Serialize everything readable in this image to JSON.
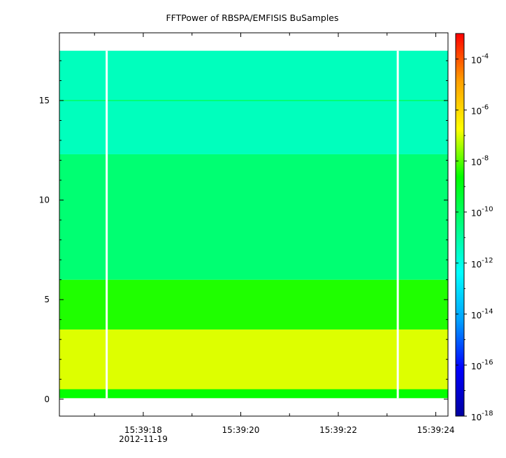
{
  "chart_data": {
    "type": "heatmap",
    "title": "FFTPower of RBSPA/EMFISIS  BuSamples",
    "xlabel": "",
    "ylabel": "",
    "x_ticks": [
      {
        "t": 18,
        "label": "15:39:18",
        "sublabel": "2012-11-19"
      },
      {
        "t": 20,
        "label": "15:39:20",
        "sublabel": ""
      },
      {
        "t": 22,
        "label": "15:39:22",
        "sublabel": ""
      },
      {
        "t": 24,
        "label": "15:39:24",
        "sublabel": ""
      }
    ],
    "x_minor_ticks": [
      17,
      19,
      21,
      23
    ],
    "xlim": [
      16.28,
      24.25
    ],
    "y_ticks": [
      {
        "v": 0,
        "label": "0"
      },
      {
        "v": 5,
        "label": "5"
      },
      {
        "v": 10,
        "label": "10"
      },
      {
        "v": 15,
        "label": "15"
      }
    ],
    "ylim": [
      -0.85,
      18.4
    ],
    "data_extent": {
      "x": [
        16.28,
        24.25
      ],
      "y": [
        0.05,
        17.5
      ]
    },
    "gaps_x": [
      17.25,
      23.22
    ],
    "bands": [
      {
        "y": [
          0.05,
          0.5
        ],
        "log10_power": -8.6
      },
      {
        "y": [
          0.5,
          3.5
        ],
        "log10_power": -7.0
      },
      {
        "y": [
          3.5,
          6.0
        ],
        "log10_power": -8.4
      },
      {
        "y": [
          6.0,
          12.3
        ],
        "log10_power": -10.3
      },
      {
        "y": [
          12.3,
          17.5
        ],
        "log10_power": -11.4
      }
    ],
    "line_features": [
      {
        "y": 15.0,
        "log10_power": -10.0
      }
    ],
    "colorbar": {
      "scale": "log",
      "range": [
        1e-18,
        0.001
      ],
      "tick_labels": [
        {
          "base": "10",
          "exp": "-4",
          "v": -4
        },
        {
          "base": "10",
          "exp": "-6",
          "v": -6
        },
        {
          "base": "10",
          "exp": "-8",
          "v": -8
        },
        {
          "base": "10",
          "exp": "-10",
          "v": -10
        },
        {
          "base": "10",
          "exp": "-12",
          "v": -12
        },
        {
          "base": "10",
          "exp": "-14",
          "v": -14
        },
        {
          "base": "10",
          "exp": "-16",
          "v": -16
        },
        {
          "base": "10",
          "exp": "-18",
          "v": -18
        }
      ],
      "colors": [
        "#0000a0",
        "#0000ff",
        "#00a0ff",
        "#00ffff",
        "#00ff80",
        "#00ff00",
        "#ffff00",
        "#ffa000",
        "#ff0000"
      ]
    }
  }
}
